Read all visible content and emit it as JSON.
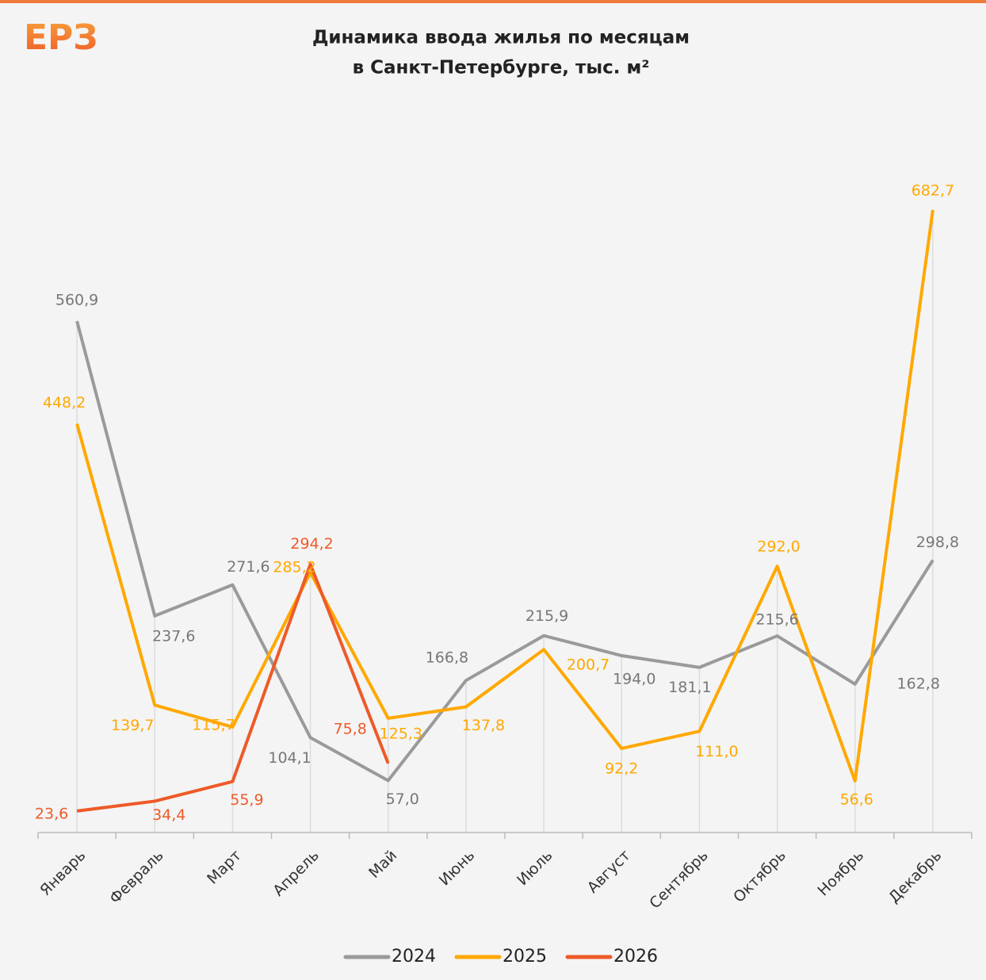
{
  "logo": "ЕРЗ",
  "chart_data": {
    "type": "line",
    "title": "Динамика ввода жилья по месяцам",
    "subtitle": "в Санкт-Петербурге,  тыс. м²",
    "categories": [
      "Январь",
      "Февраль",
      "Март",
      "Апрель",
      "Май",
      "Июнь",
      "Июль",
      "Август",
      "Сентябрь",
      "Октябрь",
      "Ноябрь",
      "Декабрь"
    ],
    "ylim": [
      0,
      700
    ],
    "legend": "bottom",
    "series": [
      {
        "name": "2024",
        "color": "#9a9a9a",
        "values": [
          560.9,
          237.6,
          271.6,
          104.1,
          57.0,
          166.8,
          215.9,
          194.0,
          181.1,
          215.6,
          162.8,
          298.8
        ],
        "value_labels": [
          "560,9",
          "237,6",
          "271,6",
          "104,1",
          "57,0",
          "166,8",
          "215,9",
          "194,0",
          "181,1",
          "215,6",
          "162,8",
          "298,8"
        ]
      },
      {
        "name": "2025",
        "color": "#ffa800",
        "values": [
          448.2,
          139.7,
          115.7,
          285.2,
          125.3,
          137.8,
          200.7,
          92.2,
          111.0,
          292.0,
          56.6,
          682.7
        ],
        "value_labels": [
          "448,2",
          "139,7",
          "115,7",
          "285,2",
          "125,3",
          "137,8",
          "200,7",
          "92,2",
          "111,0",
          "292,0",
          "56,6",
          "682,7"
        ]
      },
      {
        "name": "2026",
        "color": "#ee5a28",
        "values": [
          23.6,
          34.4,
          55.9,
          294.2,
          75.8,
          null,
          null,
          null,
          null,
          null,
          null,
          null
        ],
        "value_labels": [
          "23,6",
          "34,4",
          "55,9",
          "294,2",
          "75,8",
          null,
          null,
          null,
          null,
          null,
          null,
          null
        ]
      }
    ]
  }
}
